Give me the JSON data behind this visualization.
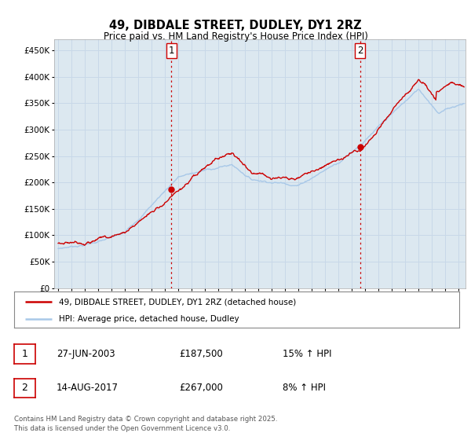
{
  "title": "49, DIBDALE STREET, DUDLEY, DY1 2RZ",
  "subtitle": "Price paid vs. HM Land Registry's House Price Index (HPI)",
  "ytick_values": [
    0,
    50000,
    100000,
    150000,
    200000,
    250000,
    300000,
    350000,
    400000,
    450000
  ],
  "ylim": [
    0,
    470000
  ],
  "xlim_start": 1994.7,
  "xlim_end": 2025.5,
  "red_line_color": "#cc0000",
  "blue_line_color": "#a8c8e8",
  "grid_color": "#c8d8e8",
  "bg_color": "#dce8f0",
  "marker1_x": 2003.49,
  "marker1_y": 187500,
  "marker2_x": 2017.62,
  "marker2_y": 267000,
  "vline_color": "#cc0000",
  "legend_label_red": "49, DIBDALE STREET, DUDLEY, DY1 2RZ (detached house)",
  "legend_label_blue": "HPI: Average price, detached house, Dudley",
  "annotation1_label": "1",
  "annotation1_date": "27-JUN-2003",
  "annotation1_price": "£187,500",
  "annotation1_hpi": "15% ↑ HPI",
  "annotation2_label": "2",
  "annotation2_date": "14-AUG-2017",
  "annotation2_price": "£267,000",
  "annotation2_hpi": "8% ↑ HPI",
  "footer": "Contains HM Land Registry data © Crown copyright and database right 2025.\nThis data is licensed under the Open Government Licence v3.0."
}
